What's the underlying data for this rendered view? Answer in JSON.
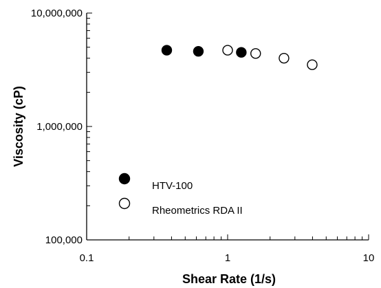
{
  "chart_data": {
    "type": "scatter",
    "title": "",
    "xlabel": "Shear Rate (1/s)",
    "ylabel": "Viscosity (cP)",
    "x_scale": "log",
    "y_scale": "log",
    "xlim": [
      0.1,
      10
    ],
    "ylim": [
      100000,
      10000000
    ],
    "x_ticks": [
      {
        "value": 0.1,
        "label": "0.1"
      },
      {
        "value": 1,
        "label": "1"
      },
      {
        "value": 10,
        "label": "10"
      }
    ],
    "y_ticks": [
      {
        "value": 100000,
        "label": "100,000"
      },
      {
        "value": 1000000,
        "label": "1,000,000"
      },
      {
        "value": 10000000,
        "label": "10,000,000"
      }
    ],
    "grid": false,
    "legend_position": "bottom-left",
    "series": [
      {
        "name": "HTV-100",
        "marker": "filled-circle",
        "color": "#000000",
        "points": [
          {
            "x": 0.37,
            "y": 4700000
          },
          {
            "x": 0.62,
            "y": 4600000
          },
          {
            "x": 1.25,
            "y": 4500000
          }
        ]
      },
      {
        "name": "Rheometrics RDA II",
        "marker": "open-circle",
        "color": "#000000",
        "points": [
          {
            "x": 1.0,
            "y": 4700000
          },
          {
            "x": 1.58,
            "y": 4400000
          },
          {
            "x": 2.51,
            "y": 4000000
          },
          {
            "x": 3.98,
            "y": 3500000
          }
        ]
      }
    ]
  }
}
